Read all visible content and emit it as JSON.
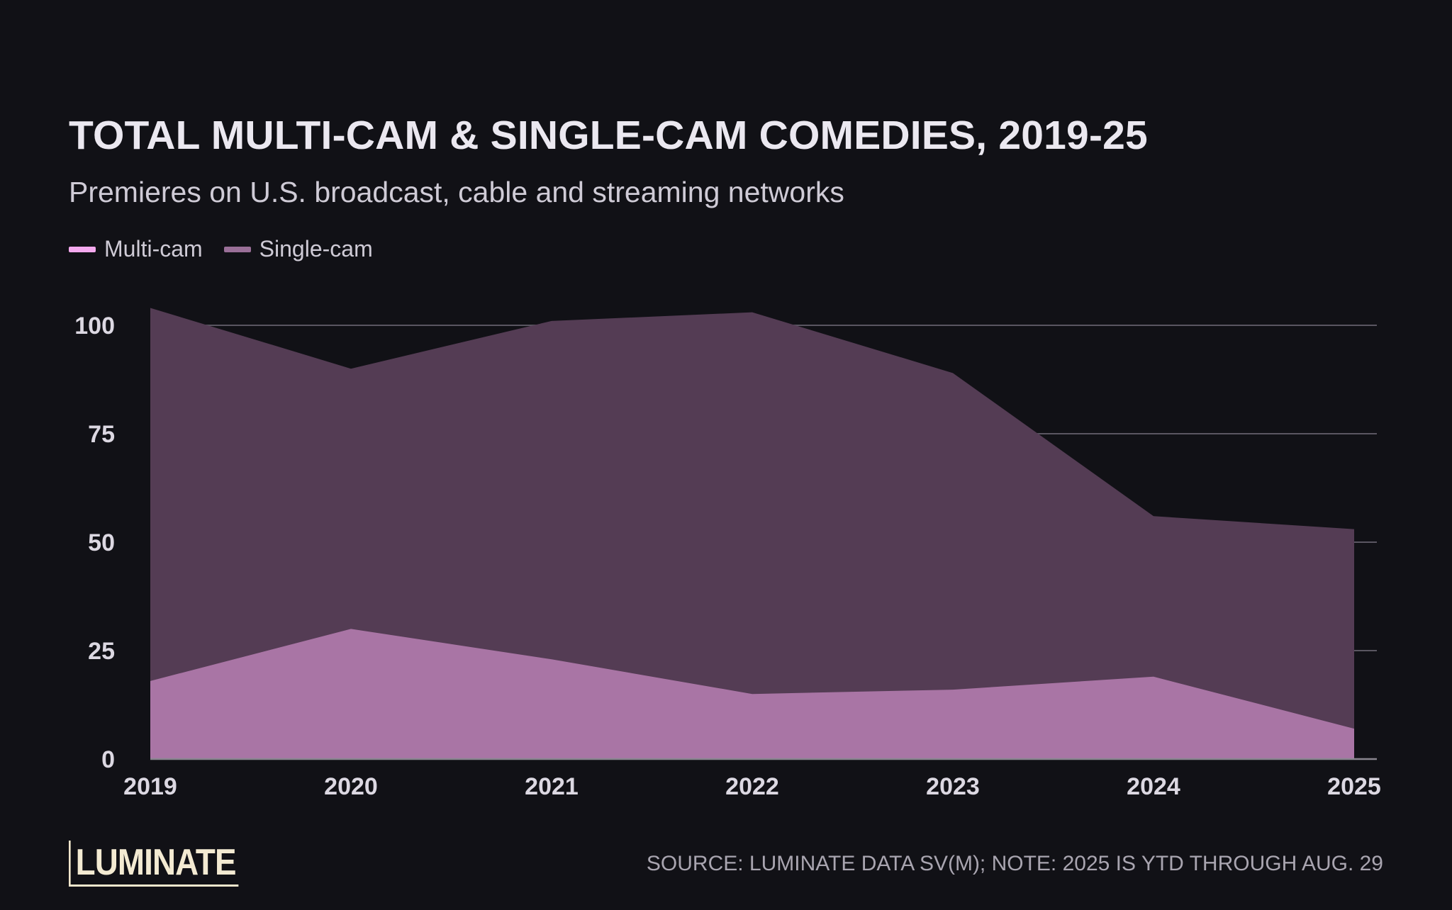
{
  "title": "TOTAL MULTI-CAM & SINGLE-CAM COMEDIES, 2019-25",
  "subtitle": "Premieres on U.S. broadcast, cable and streaming networks",
  "logo_text": "LUMINATE",
  "footer_note": "SOURCE: LUMINATE DATA SV(M);  NOTE: 2025 IS YTD THROUGH AUG. 29",
  "colors": {
    "background": "#111116",
    "multi_cam_fill": "#a975a5",
    "single_cam_fill": "#543c54",
    "multi_cam_legend": "#f4a9ee",
    "single_cam_legend": "#9a6f98",
    "grid": "#5a5661"
  },
  "chart_data": {
    "type": "area",
    "x": [
      "2019",
      "2020",
      "2021",
      "2022",
      "2023",
      "2024",
      "2025"
    ],
    "series": [
      {
        "name": "Multi-cam",
        "values": [
          18,
          30,
          23,
          15,
          16,
          19,
          7
        ]
      },
      {
        "name": "Single-cam",
        "values": [
          104,
          90,
          101,
          103,
          89,
          56,
          53
        ]
      }
    ],
    "y_ticks": [
      "0",
      "25",
      "50",
      "75",
      "100"
    ],
    "ylim": [
      0,
      104
    ],
    "legend": "top-left",
    "grid": true
  }
}
